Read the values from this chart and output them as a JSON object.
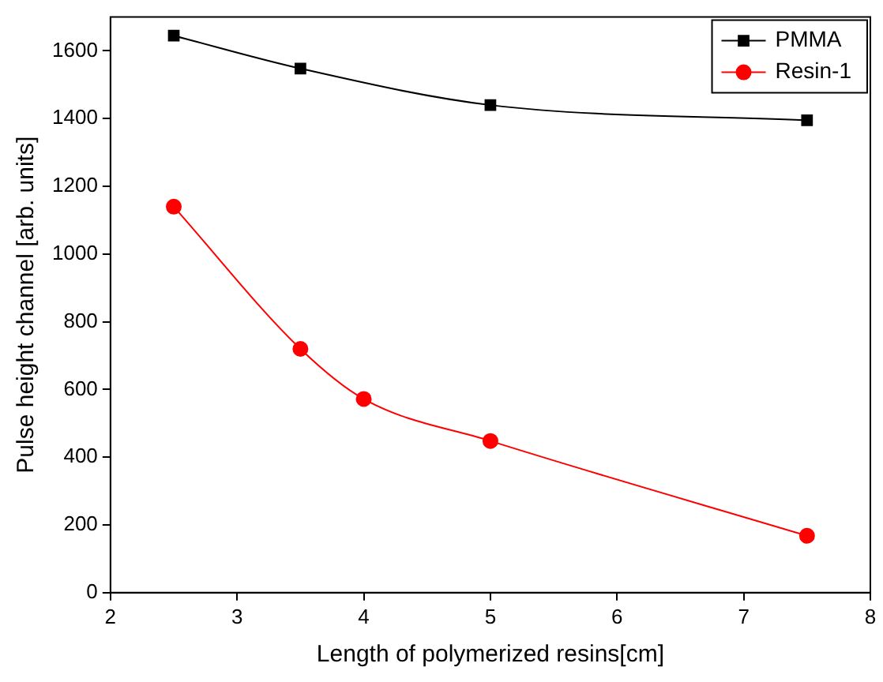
{
  "chart_data": {
    "type": "line",
    "xlabel": "Length of polymerized resins[cm]",
    "ylabel": "Pulse height channel [arb. units]",
    "xlim": [
      2,
      8
    ],
    "xticks": [
      2,
      3,
      4,
      5,
      6,
      7,
      8
    ],
    "ylim": [
      0,
      1700
    ],
    "yticks": [
      0,
      200,
      400,
      600,
      800,
      1000,
      1200,
      1400,
      1600
    ],
    "grid": false,
    "legend": "top right",
    "series": [
      {
        "name": "PMMA",
        "color": "#000000",
        "marker": "square",
        "x": [
          2.5,
          3.5,
          5,
          7.5
        ],
        "values": [
          1645,
          1548,
          1440,
          1395
        ]
      },
      {
        "name": "Resin-1",
        "color": "#ff0000",
        "marker": "circle",
        "x": [
          2.5,
          3.5,
          4,
          5,
          7.5
        ],
        "values": [
          1140,
          720,
          572,
          448,
          168
        ]
      }
    ]
  }
}
